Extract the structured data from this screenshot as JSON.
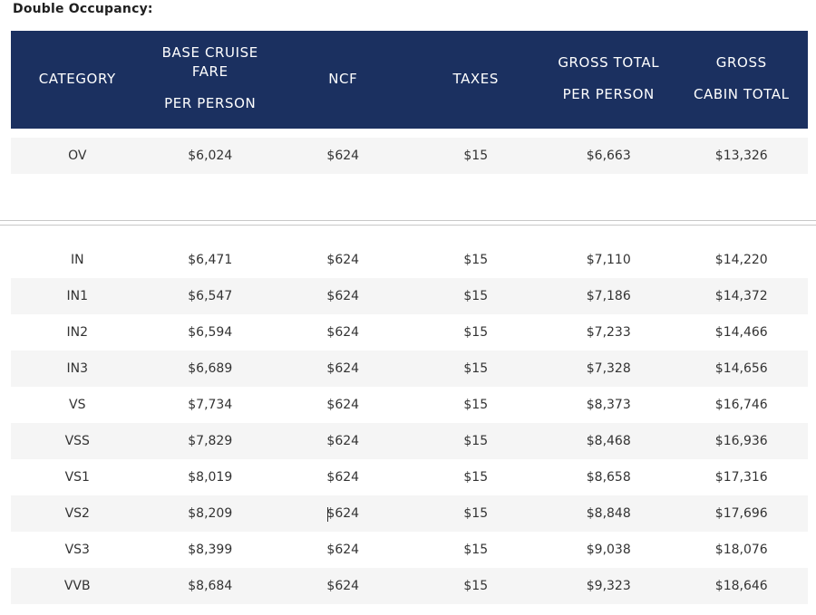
{
  "title": "Double Occupancy:",
  "columns": [
    {
      "lines": [
        "CATEGORY"
      ]
    },
    {
      "lines": [
        "BASE CRUISE",
        "FARE",
        "PER PERSON"
      ]
    },
    {
      "lines": [
        "NCF"
      ]
    },
    {
      "lines": [
        "TAXES"
      ]
    },
    {
      "lines": [
        "GROSS TOTAL",
        "PER PERSON"
      ]
    },
    {
      "lines": [
        "GROSS",
        "CABIN TOTAL"
      ]
    }
  ],
  "group1": [
    [
      "OV",
      "$6,024",
      "$624",
      "$15",
      "$6,663",
      "$13,326"
    ]
  ],
  "group2": [
    [
      "IN",
      "$6,471",
      "$624",
      "$15",
      "$7,110",
      "$14,220"
    ],
    [
      "IN1",
      "$6,547",
      "$624",
      "$15",
      "$7,186",
      "$14,372"
    ],
    [
      "IN2",
      "$6,594",
      "$624",
      "$15",
      "$7,233",
      "$14,466"
    ],
    [
      "IN3",
      "$6,689",
      "$624",
      "$15",
      "$7,328",
      "$14,656"
    ],
    [
      "VS",
      "$7,734",
      "$624",
      "$15",
      "$8,373",
      "$16,746"
    ],
    [
      "VSS",
      "$7,829",
      "$624",
      "$15",
      "$8,468",
      "$16,936"
    ],
    [
      "VS1",
      "$8,019",
      "$624",
      "$15",
      "$8,658",
      "$17,316"
    ],
    [
      "VS2",
      "$8,209",
      "$624",
      "$15",
      "$8,848",
      "$17,696"
    ],
    [
      "VS3",
      "$8,399",
      "$624",
      "$15",
      "$9,038",
      "$18,076"
    ],
    [
      "VVB",
      "$8,684",
      "$624",
      "$15",
      "$9,323",
      "$18,646"
    ]
  ],
  "colors": {
    "header_bg": "#1b3060",
    "shaded_row": "#f5f5f5"
  }
}
